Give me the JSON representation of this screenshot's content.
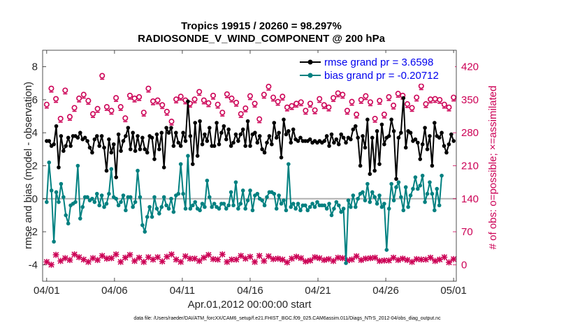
{
  "colors": {
    "rmse": "#000000",
    "bias": "#008080",
    "obs": "#cc0055",
    "zero": "#b0b0b0",
    "legend_text": "#0000ee"
  },
  "chart_data": {
    "type": "line",
    "title_line1": "Tropics 19915 / 20260 = 98.297%",
    "title_line2": "RADIOSONDE_V_WIND_COMPONENT @ 200 hPa",
    "xlabel": "Apr.01,2012 00:00:00 start",
    "ylabel_left": "rmse and bias (model - observation)",
    "ylabel_right": "# of obs: o=possible; ×=assimilated",
    "x_ticks": [
      {
        "day": 0,
        "label": "04/01"
      },
      {
        "day": 5,
        "label": "04/06"
      },
      {
        "day": 10,
        "label": "04/11"
      },
      {
        "day": 15,
        "label": "04/16"
      },
      {
        "day": 20,
        "label": "04/21"
      },
      {
        "day": 25,
        "label": "04/26"
      },
      {
        "day": 30,
        "label": "05/01"
      }
    ],
    "xlim": [
      -0.3,
      30.2
    ],
    "ylim_left": [
      -5,
      9
    ],
    "y_ticks_left": [
      -4,
      -2,
      0,
      2,
      4,
      6,
      8
    ],
    "ylim_right": [
      -35,
      455
    ],
    "y_ticks_right": [
      0,
      70,
      140,
      210,
      280,
      350,
      420
    ],
    "legend": {
      "rmse": "rmse grand pr = 3.6598",
      "bias": "bias grand pr = -0.20712"
    },
    "series": [
      {
        "name": "rmse",
        "values": [
          3.5,
          3.5,
          3.2,
          3.3,
          4.4,
          1.9,
          3.8,
          2.9,
          3.2,
          3.7,
          3.2,
          3.8,
          3.8,
          3.7,
          4.0,
          3.6,
          3.7,
          3.5,
          3.1,
          2.8,
          3.6,
          3.8,
          3.2,
          3.8,
          3.1,
          1.7,
          3.6,
          2.8,
          3.3,
          1.3,
          3.9,
          2.9,
          3.5,
          3.8,
          4.3,
          3.0,
          4.0,
          2.9,
          3.8,
          3.0,
          3.7,
          3.0,
          2.8,
          3.8,
          3.7,
          2.4,
          3.9,
          3.0,
          4.0,
          1.9,
          4.3,
          4.0,
          4.3,
          3.2,
          4.0,
          3.4,
          3.2,
          4.0,
          3.5,
          5.9,
          3.8,
          2.1,
          4.6,
          2.6,
          4.7,
          3.3,
          3.9,
          3.5,
          4.3,
          3.2,
          3.2,
          4.6,
          3.3,
          4.0,
          4.4,
          3.6,
          4.2,
          3.2,
          3.4,
          3.9,
          3.5,
          3.9,
          4.2,
          3.2,
          4.7,
          3.2,
          3.9,
          4.0,
          3.4,
          3.8,
          3.0,
          2.8,
          3.4,
          3.8,
          3.3,
          4.6,
          3.7,
          4.0,
          2.5,
          4.8,
          3.9,
          4.1,
          3.4,
          4.2,
          3.6,
          3.5,
          3.7,
          3.5,
          3.5,
          3.5,
          3.6,
          3.4,
          3.5,
          3.4,
          3.5,
          3.4,
          3.5,
          3.8,
          3.2,
          3.9,
          3.4,
          3.6,
          3.3,
          3.9,
          3.7,
          3.4,
          3.7,
          3.6,
          4.2,
          4.4,
          3.7,
          2.0,
          3.8,
          3.1,
          4.8,
          1.5,
          3.7,
          1.7,
          4.1,
          2.1,
          4.5,
          3.3,
          3.7,
          3.8,
          4.8,
          4.1,
          1.2,
          3.7,
          4.0,
          6.1,
          3.1,
          4.1,
          4.0,
          3.5,
          3.6,
          3.4,
          2.4,
          3.3,
          4.3,
          3.0,
          3.8,
          2.0,
          4.6,
          3.8,
          3.7,
          4.0,
          3.2,
          2.8,
          3.3,
          3.9,
          3.5
        ],
        "x_start": 0,
        "x_step": 0.1765
      },
      {
        "name": "bias",
        "values": [
          -0.2,
          2.2,
          0.5,
          -2.6,
          0.4,
          -0.2,
          0.9,
          0.1,
          -1.0,
          -1.5,
          -0.4,
          -0.3,
          -0.2,
          2.0,
          -1.2,
          -0.5,
          0.1,
          0.1,
          -0.1,
          0.0,
          -0.2,
          0.3,
          -0.4,
          0.2,
          -0.5,
          -0.3,
          0.3,
          1.8,
          0.1,
          0.0,
          -0.4,
          -0.2,
          0.2,
          -0.7,
          0.1,
          0.1,
          -0.5,
          -0.2,
          1.7,
          0.1,
          -1.6,
          -2.0,
          -1.1,
          -0.5,
          -1.1,
          0.1,
          -0.6,
          -0.9,
          -0.5,
          0.1,
          -0.4,
          -0.6,
          0.0,
          -0.8,
          0.2,
          0.3,
          2.1,
          0.3,
          -0.6,
          2.6,
          -0.6,
          -0.4,
          -0.2,
          -0.6,
          -0.7,
          -0.3,
          -0.5,
          1.1,
          0.1,
          -0.5,
          -0.3,
          -0.5,
          -0.6,
          -0.3,
          -0.3,
          -0.6,
          -0.4,
          0.4,
          -0.4,
          1.0,
          -0.6,
          -0.3,
          0.5,
          -0.6,
          -0.1,
          0.5,
          -0.7,
          0.2,
          0.3,
          0.0,
          -0.1,
          -0.4,
          0.1,
          0.4,
          0.4,
          0.3,
          -0.6,
          0.2,
          -0.3,
          -0.1,
          -0.7,
          2.1,
          -0.5,
          -0.3,
          -0.6,
          -0.3,
          -0.7,
          -0.4,
          -0.4,
          -0.7,
          -0.5,
          -0.3,
          -0.5,
          -0.2,
          -0.4,
          -0.4,
          -0.4,
          -0.6,
          -0.3,
          -1.0,
          -0.6,
          -0.2,
          -0.4,
          -0.8,
          -0.6,
          -3.9,
          -0.1,
          -0.5,
          0.2,
          -0.5,
          0.0,
          0.3,
          0.4,
          -0.1,
          0.9,
          -0.2,
          0.4,
          0.1,
          -0.3,
          0.2,
          -0.5,
          -0.3,
          -3.1,
          -0.6,
          0.9,
          -0.1,
          0.7,
          1.0,
          0.1,
          -0.7,
          0.7,
          -0.5,
          0.2,
          0.6,
          1.3,
          0.6,
          0.8,
          1.4,
          -0.2,
          0.3,
          1.0,
          0.3,
          -0.7,
          0.6,
          -0.4,
          1.4
        ],
        "x_start": 0,
        "x_step": 0.1765
      },
      {
        "name": "obs_possible",
        "values": [
          337,
          371,
          349,
          307,
          367,
          311,
          330,
          350,
          358,
          345,
          317,
          328,
          398,
          332,
          324,
          351,
          332,
          308,
          356,
          350,
          353,
          320,
          371,
          344,
          346,
          336,
          322,
          301,
          348,
          354,
          346,
          339,
          348,
          364,
          346,
          340,
          356,
          337,
          320,
          359,
          350,
          341,
          317,
          329,
          355,
          339,
          306,
          358,
          375,
          352,
          343,
          354,
          331,
          334,
          339,
          342,
          324,
          339,
          325,
          349,
          336,
          331,
          351,
          361,
          358,
          324,
          343,
          316,
          347,
          355,
          342,
          307,
          345,
          316,
          353,
          335,
          360,
          356,
          338,
          330,
          352,
          376,
          338,
          348,
          349,
          347,
          337,
          331,
          352
        ],
        "x_start": 0,
        "x_step": 0.3409
      },
      {
        "name": "obs_assimilated",
        "values": [
          6,
          0,
          21,
          8,
          14,
          10,
          22,
          16,
          11,
          6,
          14,
          10,
          19,
          13,
          14,
          22,
          6,
          15,
          21,
          8,
          15,
          6,
          16,
          11,
          16,
          7,
          17,
          22,
          11,
          6,
          18,
          13,
          13,
          8,
          15,
          21,
          12,
          11,
          22,
          6,
          11,
          11,
          19,
          13,
          17,
          6,
          19,
          8,
          18,
          12,
          13,
          11,
          5,
          13,
          17,
          14,
          7,
          9,
          16,
          14,
          10,
          12,
          8,
          15,
          14,
          9,
          11,
          18,
          10,
          13,
          14,
          15,
          8,
          9,
          9,
          15,
          10,
          13,
          10,
          6,
          12,
          11,
          11,
          15,
          8,
          11,
          16,
          5,
          12
        ],
        "x_start": 0,
        "x_step": 0.3409
      }
    ],
    "footnote": "data file: /Users/raeder/DAI/ATM_forcXX/CAM6_setup/f.e21.FHIST_BGC.f09_025.CAM6assim.011/Diags_NTrS_2012-04/obs_diag_output.nc"
  }
}
